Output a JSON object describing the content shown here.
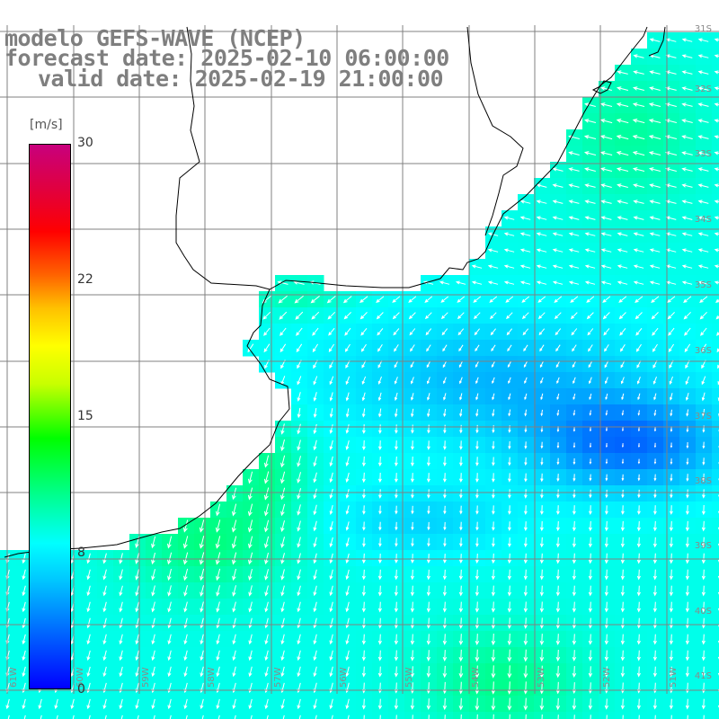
{
  "title": {
    "line1": "modelo GEFS-WAVE (NCEP)",
    "line2": "forecast date: 2025-02-10 06:00:00",
    "line3": "valid date: 2025-02-19 21:00:00"
  },
  "colorbar": {
    "unit": "[m/s]",
    "ticks": [
      "30",
      "22",
      "15",
      "8",
      "0"
    ],
    "min": 0,
    "max": 30
  },
  "axes": {
    "lat_labels": [
      "31S",
      "32S",
      "33S",
      "34S",
      "35S",
      "36S",
      "37S",
      "38S",
      "39S",
      "40S",
      "41S"
    ],
    "lon_labels": [
      "61W",
      "60W",
      "59W",
      "58W",
      "57W",
      "56W",
      "55W",
      "54W",
      "53W",
      "52W",
      "51W"
    ]
  },
  "colors": {
    "land": "#ffffff",
    "coast": "#000000",
    "grid": "#808080",
    "arrow": "#ffffff",
    "text": "#7f7f7f"
  }
}
